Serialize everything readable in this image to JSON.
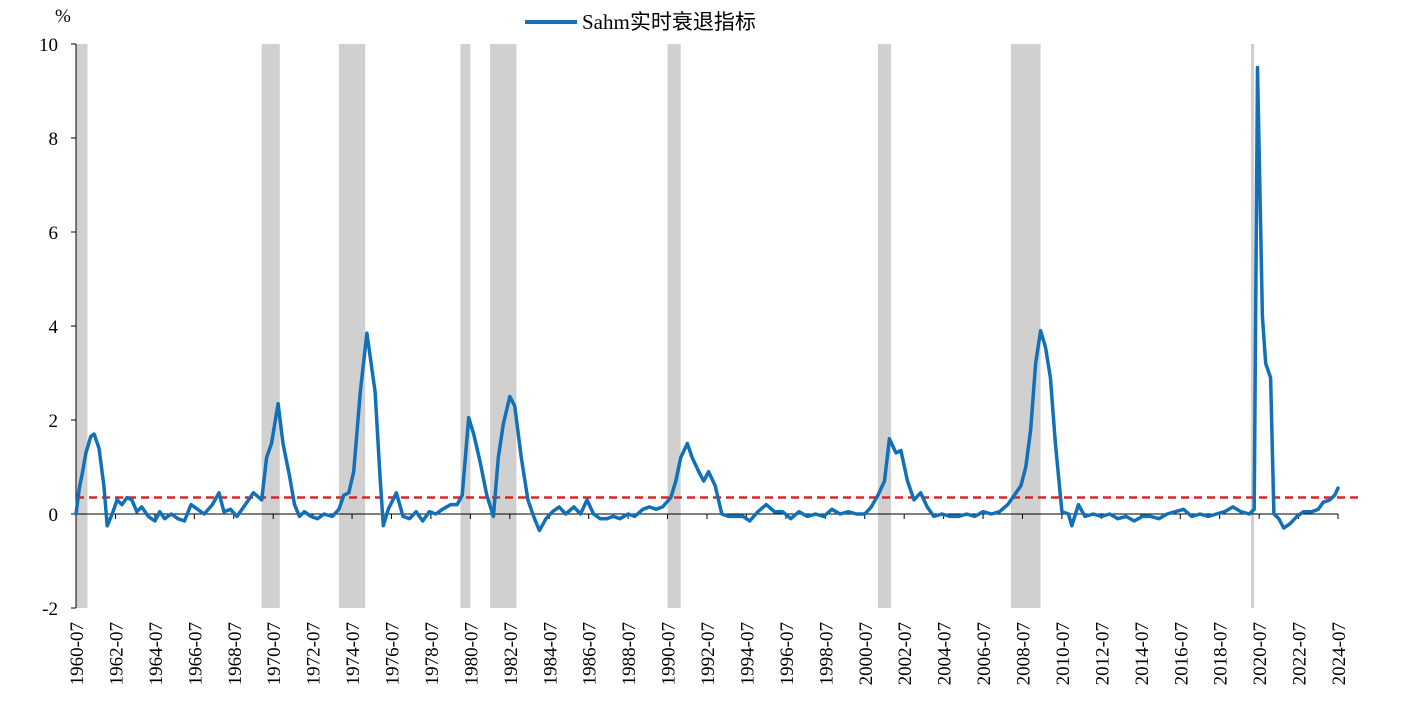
{
  "chart_data": {
    "type": "line",
    "ylabel": "%",
    "ylim": [
      -2,
      10
    ],
    "yticks": [
      -2,
      0,
      2,
      4,
      6,
      8,
      10
    ],
    "xlim": [
      "1960-07",
      "2024-07"
    ],
    "xticks": [
      "1960-07",
      "1962-07",
      "1964-07",
      "1966-07",
      "1968-07",
      "1970-07",
      "1972-07",
      "1974-07",
      "1976-07",
      "1978-07",
      "1980-07",
      "1982-07",
      "1984-07",
      "1986-07",
      "1988-07",
      "1990-07",
      "1992-07",
      "1994-07",
      "1996-07",
      "1998-07",
      "2000-07",
      "2002-07",
      "2004-07",
      "2006-07",
      "2008-07",
      "2010-07",
      "2012-07",
      "2014-07",
      "2016-07",
      "2018-07",
      "2020-07",
      "2022-07",
      "2024-07"
    ],
    "legend": "top-center",
    "grid": false,
    "threshold": {
      "value": 0.35,
      "color": "#d9262b",
      "style": "dashed"
    },
    "recession_shading_color": "#d0d0d0",
    "recessions": [
      [
        "1960-07",
        "1961-02"
      ],
      [
        "1969-12",
        "1970-11"
      ],
      [
        "1973-11",
        "1975-03"
      ],
      [
        "1980-01",
        "1980-07"
      ],
      [
        "1981-07",
        "1982-11"
      ],
      [
        "1990-07",
        "1991-03"
      ],
      [
        "2001-03",
        "2001-11"
      ],
      [
        "2007-12",
        "2009-06"
      ],
      [
        "2020-02",
        "2020-04"
      ]
    ],
    "series": [
      {
        "name": "Sahm实时衰退指标",
        "color": "#1170b8",
        "points": [
          [
            "1960-07",
            0.0
          ],
          [
            "1960-09",
            0.55
          ],
          [
            "1960-11",
            0.9
          ],
          [
            "1961-01",
            1.3
          ],
          [
            "1961-04",
            1.65
          ],
          [
            "1961-06",
            1.7
          ],
          [
            "1961-09",
            1.4
          ],
          [
            "1961-12",
            0.6
          ],
          [
            "1962-02",
            -0.25
          ],
          [
            "1962-05",
            0.0
          ],
          [
            "1962-08",
            0.3
          ],
          [
            "1962-11",
            0.2
          ],
          [
            "1963-02",
            0.35
          ],
          [
            "1963-05",
            0.3
          ],
          [
            "1963-08",
            0.05
          ],
          [
            "1963-11",
            0.15
          ],
          [
            "1964-03",
            -0.05
          ],
          [
            "1964-07",
            -0.15
          ],
          [
            "1964-10",
            0.05
          ],
          [
            "1965-01",
            -0.1
          ],
          [
            "1965-05",
            0.0
          ],
          [
            "1965-09",
            -0.1
          ],
          [
            "1966-01",
            -0.15
          ],
          [
            "1966-05",
            0.2
          ],
          [
            "1966-09",
            0.1
          ],
          [
            "1967-01",
            0.0
          ],
          [
            "1967-06",
            0.2
          ],
          [
            "1967-10",
            0.45
          ],
          [
            "1968-01",
            0.05
          ],
          [
            "1968-05",
            0.1
          ],
          [
            "1968-09",
            -0.05
          ],
          [
            "1969-02",
            0.2
          ],
          [
            "1969-07",
            0.45
          ],
          [
            "1969-12",
            0.3
          ],
          [
            "1970-03",
            1.2
          ],
          [
            "1970-06",
            1.5
          ],
          [
            "1970-10",
            2.35
          ],
          [
            "1971-01",
            1.5
          ],
          [
            "1971-05",
            0.8
          ],
          [
            "1971-08",
            0.2
          ],
          [
            "1971-11",
            -0.05
          ],
          [
            "1972-02",
            0.05
          ],
          [
            "1972-06",
            -0.05
          ],
          [
            "1972-10",
            -0.1
          ],
          [
            "1973-02",
            0.0
          ],
          [
            "1973-07",
            -0.05
          ],
          [
            "1973-11",
            0.1
          ],
          [
            "1974-02",
            0.4
          ],
          [
            "1974-05",
            0.45
          ],
          [
            "1974-08",
            0.9
          ],
          [
            "1974-12",
            2.6
          ],
          [
            "1975-04",
            3.85
          ],
          [
            "1975-07",
            3.1
          ],
          [
            "1975-09",
            2.6
          ],
          [
            "1975-12",
            0.8
          ],
          [
            "1976-02",
            -0.25
          ],
          [
            "1976-05",
            0.1
          ],
          [
            "1976-10",
            0.45
          ],
          [
            "1977-02",
            -0.05
          ],
          [
            "1977-06",
            -0.1
          ],
          [
            "1977-10",
            0.05
          ],
          [
            "1978-02",
            -0.15
          ],
          [
            "1978-06",
            0.05
          ],
          [
            "1978-10",
            0.0
          ],
          [
            "1979-02",
            0.1
          ],
          [
            "1979-07",
            0.2
          ],
          [
            "1979-11",
            0.2
          ],
          [
            "1980-02",
            0.4
          ],
          [
            "1980-06",
            2.05
          ],
          [
            "1980-09",
            1.7
          ],
          [
            "1981-01",
            1.1
          ],
          [
            "1981-05",
            0.4
          ],
          [
            "1981-09",
            -0.05
          ],
          [
            "1981-12",
            1.2
          ],
          [
            "1982-03",
            1.9
          ],
          [
            "1982-07",
            2.5
          ],
          [
            "1982-10",
            2.3
          ],
          [
            "1983-02",
            1.2
          ],
          [
            "1983-06",
            0.3
          ],
          [
            "1983-10",
            -0.1
          ],
          [
            "1984-01",
            -0.35
          ],
          [
            "1984-05",
            -0.1
          ],
          [
            "1984-09",
            0.05
          ],
          [
            "1985-01",
            0.15
          ],
          [
            "1985-05",
            0.0
          ],
          [
            "1985-10",
            0.15
          ],
          [
            "1986-02",
            0.0
          ],
          [
            "1986-06",
            0.3
          ],
          [
            "1986-10",
            0.0
          ],
          [
            "1987-02",
            -0.1
          ],
          [
            "1987-06",
            -0.1
          ],
          [
            "1987-10",
            -0.05
          ],
          [
            "1988-02",
            -0.1
          ],
          [
            "1988-07",
            0.0
          ],
          [
            "1988-11",
            -0.05
          ],
          [
            "1989-04",
            0.1
          ],
          [
            "1989-08",
            0.15
          ],
          [
            "1989-12",
            0.1
          ],
          [
            "1990-04",
            0.15
          ],
          [
            "1990-09",
            0.35
          ],
          [
            "1990-12",
            0.7
          ],
          [
            "1991-03",
            1.2
          ],
          [
            "1991-07",
            1.5
          ],
          [
            "1991-10",
            1.2
          ],
          [
            "1992-02",
            0.9
          ],
          [
            "1992-05",
            0.7
          ],
          [
            "1992-08",
            0.9
          ],
          [
            "1992-12",
            0.6
          ],
          [
            "1993-04",
            0.0
          ],
          [
            "1993-08",
            -0.05
          ],
          [
            "1993-12",
            -0.05
          ],
          [
            "1994-05",
            -0.05
          ],
          [
            "1994-09",
            -0.15
          ],
          [
            "1995-02",
            0.05
          ],
          [
            "1995-07",
            0.2
          ],
          [
            "1995-12",
            0.05
          ],
          [
            "1996-05",
            0.05
          ],
          [
            "1996-10",
            -0.1
          ],
          [
            "1997-03",
            0.05
          ],
          [
            "1997-08",
            -0.05
          ],
          [
            "1998-01",
            0.0
          ],
          [
            "1998-06",
            -0.05
          ],
          [
            "1998-11",
            0.1
          ],
          [
            "1999-04",
            0.0
          ],
          [
            "1999-09",
            0.05
          ],
          [
            "2000-02",
            0.0
          ],
          [
            "2000-07",
            0.0
          ],
          [
            "2000-11",
            0.15
          ],
          [
            "2001-03",
            0.4
          ],
          [
            "2001-07",
            0.7
          ],
          [
            "2001-10",
            1.6
          ],
          [
            "2002-02",
            1.3
          ],
          [
            "2002-05",
            1.35
          ],
          [
            "2002-09",
            0.7
          ],
          [
            "2003-01",
            0.3
          ],
          [
            "2003-05",
            0.45
          ],
          [
            "2003-09",
            0.15
          ],
          [
            "2004-01",
            -0.05
          ],
          [
            "2004-06",
            0.0
          ],
          [
            "2004-11",
            -0.05
          ],
          [
            "2005-04",
            -0.05
          ],
          [
            "2005-09",
            0.0
          ],
          [
            "2006-02",
            -0.05
          ],
          [
            "2006-07",
            0.05
          ],
          [
            "2006-12",
            0.0
          ],
          [
            "2007-05",
            0.05
          ],
          [
            "2007-10",
            0.2
          ],
          [
            "2008-02",
            0.4
          ],
          [
            "2008-06",
            0.6
          ],
          [
            "2008-09",
            1.0
          ],
          [
            "2008-12",
            1.8
          ],
          [
            "2009-03",
            3.2
          ],
          [
            "2009-06",
            3.9
          ],
          [
            "2009-09",
            3.55
          ],
          [
            "2009-12",
            2.9
          ],
          [
            "2010-03",
            1.5
          ],
          [
            "2010-07",
            0.05
          ],
          [
            "2010-11",
            0.0
          ],
          [
            "2011-01",
            -0.25
          ],
          [
            "2011-05",
            0.2
          ],
          [
            "2011-09",
            -0.05
          ],
          [
            "2012-02",
            0.0
          ],
          [
            "2012-07",
            -0.05
          ],
          [
            "2012-12",
            0.0
          ],
          [
            "2013-05",
            -0.1
          ],
          [
            "2013-10",
            -0.05
          ],
          [
            "2014-03",
            -0.15
          ],
          [
            "2014-08",
            -0.05
          ],
          [
            "2015-01",
            -0.05
          ],
          [
            "2015-06",
            -0.1
          ],
          [
            "2015-11",
            0.0
          ],
          [
            "2016-04",
            0.05
          ],
          [
            "2016-09",
            0.1
          ],
          [
            "2017-02",
            -0.05
          ],
          [
            "2017-07",
            0.0
          ],
          [
            "2017-12",
            -0.05
          ],
          [
            "2018-05",
            0.0
          ],
          [
            "2018-10",
            0.05
          ],
          [
            "2019-03",
            0.15
          ],
          [
            "2019-08",
            0.05
          ],
          [
            "2020-01",
            0.0
          ],
          [
            "2020-04",
            0.1
          ],
          [
            "2020-06",
            9.5
          ],
          [
            "2020-09",
            4.2
          ],
          [
            "2020-11",
            3.2
          ],
          [
            "2021-02",
            2.9
          ],
          [
            "2021-04",
            0.0
          ],
          [
            "2021-07",
            -0.1
          ],
          [
            "2021-10",
            -0.3
          ],
          [
            "2022-02",
            -0.2
          ],
          [
            "2022-06",
            -0.05
          ],
          [
            "2022-10",
            0.05
          ],
          [
            "2023-03",
            0.05
          ],
          [
            "2023-07",
            0.1
          ],
          [
            "2023-10",
            0.25
          ],
          [
            "2024-02",
            0.3
          ],
          [
            "2024-05",
            0.4
          ],
          [
            "2024-07",
            0.55
          ]
        ]
      }
    ]
  }
}
